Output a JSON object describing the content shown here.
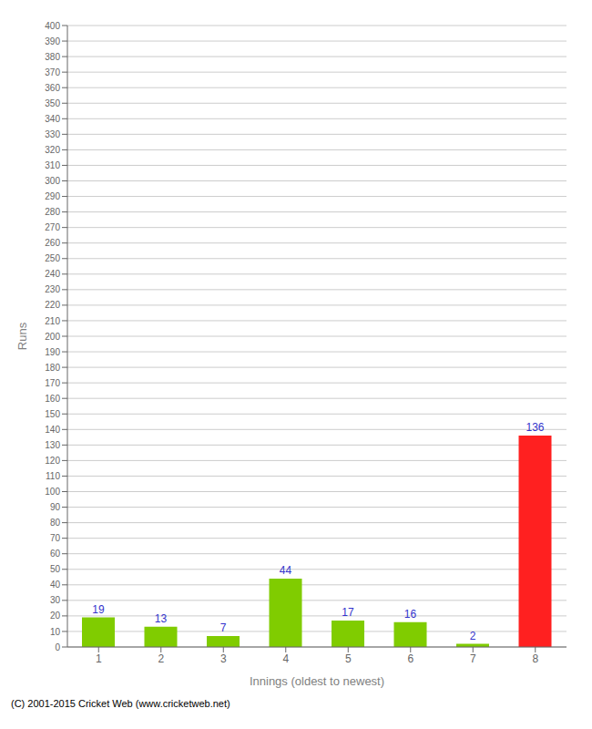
{
  "chart_data": {
    "type": "bar",
    "categories": [
      "1",
      "2",
      "3",
      "4",
      "5",
      "6",
      "7",
      "8"
    ],
    "values": [
      19,
      13,
      7,
      44,
      17,
      16,
      2,
      136
    ],
    "colors": [
      "#80cc00",
      "#80cc00",
      "#80cc00",
      "#80cc00",
      "#80cc00",
      "#80cc00",
      "#80cc00",
      "#ff2020"
    ],
    "xlabel": "Innings (oldest to newest)",
    "ylabel": "Runs",
    "ylim": [
      0,
      400
    ],
    "yticks": [
      0,
      10,
      20,
      30,
      40,
      50,
      60,
      70,
      80,
      90,
      100,
      110,
      120,
      130,
      140,
      150,
      160,
      170,
      180,
      190,
      200,
      210,
      220,
      230,
      240,
      250,
      260,
      270,
      280,
      290,
      300,
      310,
      320,
      330,
      340,
      350,
      360,
      370,
      380,
      390,
      400
    ],
    "grid": true,
    "data_labels": true,
    "annotations": [
      "(C) 2001-2015 Cricket Web (www.cricketweb.net)"
    ]
  }
}
